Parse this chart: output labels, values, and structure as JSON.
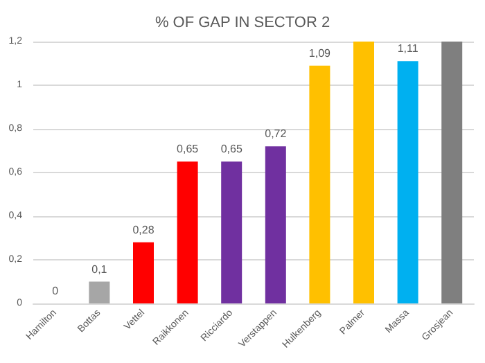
{
  "chart_data": {
    "type": "bar",
    "title": "% OF GAP IN SECTOR 2",
    "categories": [
      "Hamilton",
      "Bottas",
      "Vettel",
      "Raikkonen",
      "Ricciardo",
      "Verstappen",
      "Hulkenberg",
      "Palmer",
      "Massa",
      "Grosjean"
    ],
    "values": [
      0,
      0.1,
      0.28,
      0.65,
      0.65,
      0.72,
      1.09,
      1.2,
      1.11,
      1.2
    ],
    "colors": [
      "#a6a6a6",
      "#a6a6a6",
      "#ff0000",
      "#ff0000",
      "#7030a0",
      "#7030a0",
      "#ffc000",
      "#ffc000",
      "#00b0f0",
      "#7f7f7f"
    ],
    "value_labels": [
      "0",
      "0,1",
      "0,28",
      "0,65",
      "0,65",
      "0,72",
      "1,09",
      null,
      "1,11",
      null
    ],
    "ylim": [
      0,
      1.2
    ],
    "yticks": [
      0,
      {
        "value": 0.2,
        "label": "0,2"
      },
      {
        "value": 0.4,
        "label": "0,4"
      },
      {
        "value": 0.6,
        "label": "0,6"
      },
      {
        "value": 0.8,
        "label": "0,8"
      },
      1,
      {
        "value": 1.2,
        "label": "1,2"
      }
    ],
    "grid": "y"
  }
}
